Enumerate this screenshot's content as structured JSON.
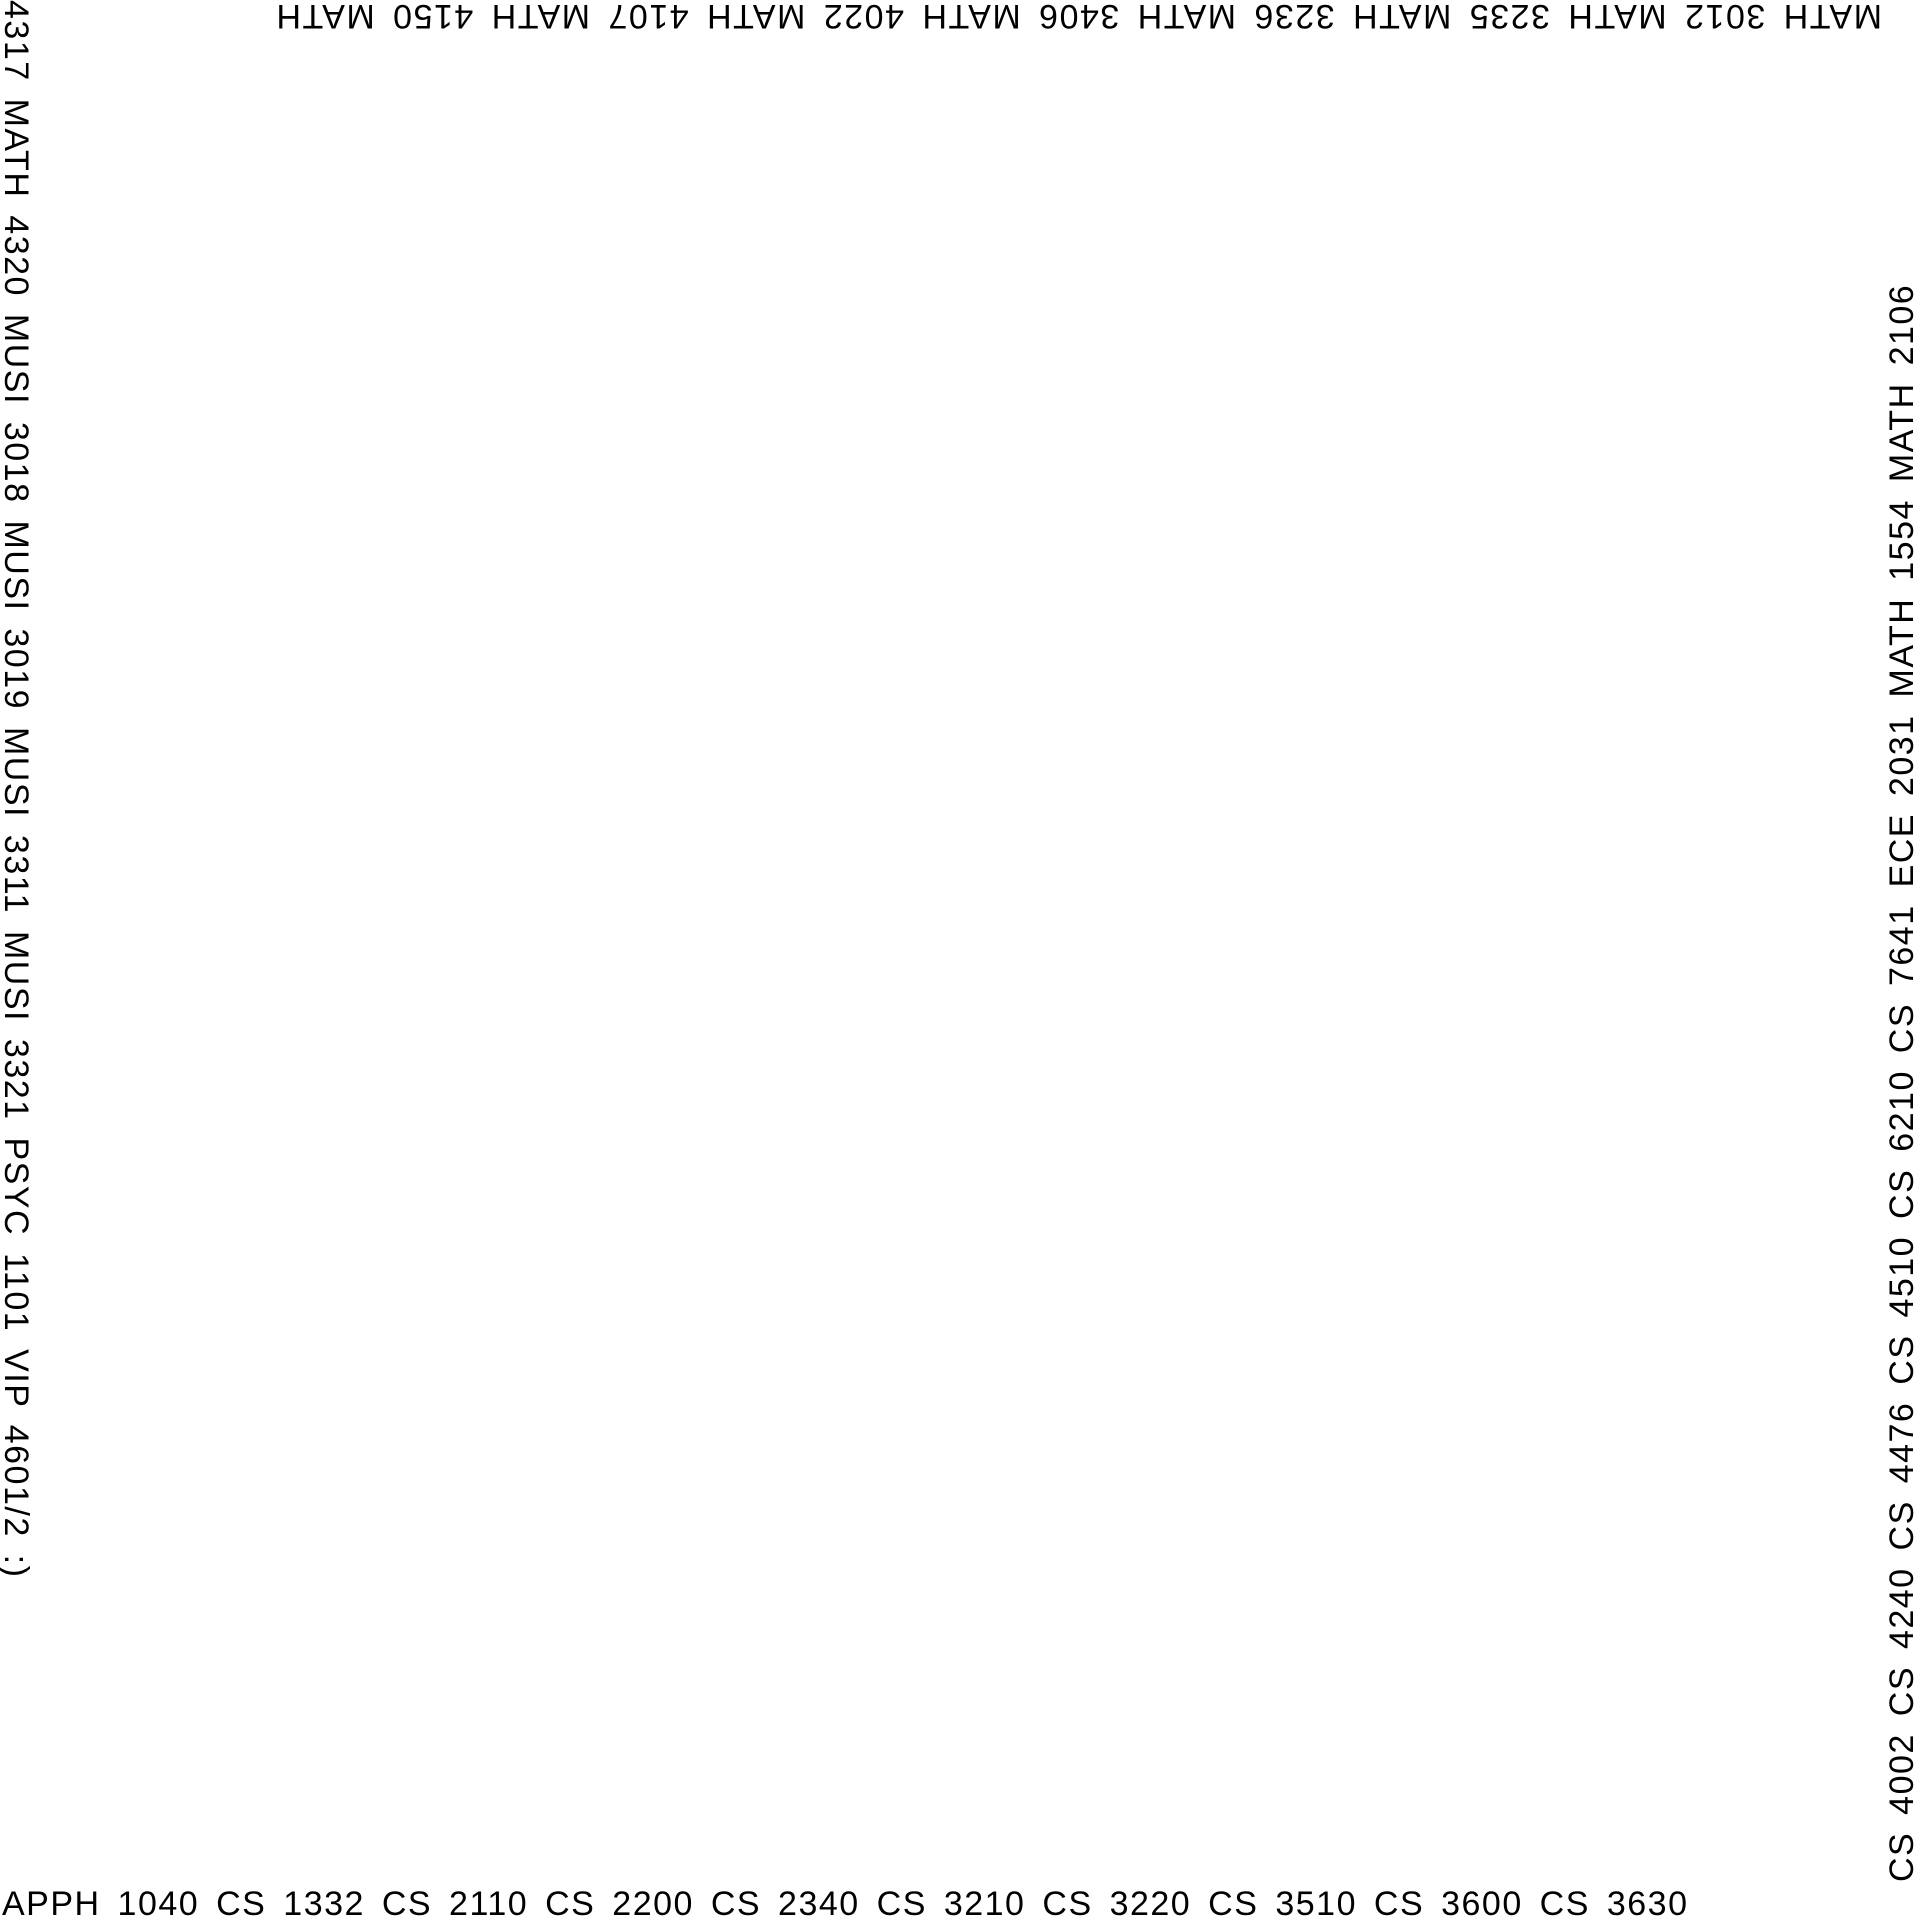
{
  "edges": {
    "bottom": "APPH 1040 CS 1332 CS 2110 CS 2200 CS 2340 CS 3210 CS 3220 CS 3510 CS 3600 CS 3630",
    "right": "CS 4002 CS 4240 CS 4476 CS 4510 CS 6210 CS 7641 ECE 2031 MATH 1554 MATH 2106",
    "top": "MATH 3012 MATH 3235 MATH 3236 MATH 3406 MATH 4022 MATH 4107 MATH 4150 MATH",
    "left": "4317 MATH 4320 MUSI 3018 MUSI 3019 MUSI 3311 MUSI 3321 PSYC 1101 VIP 4601/2  :)"
  }
}
